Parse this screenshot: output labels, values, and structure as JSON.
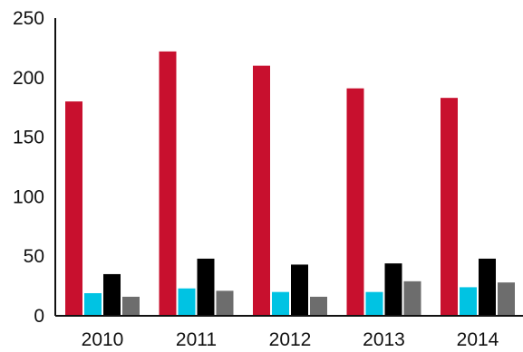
{
  "chart_data": {
    "type": "bar",
    "categories": [
      "2010",
      "2011",
      "2012",
      "2013",
      "2014"
    ],
    "series": [
      {
        "values": [
          180,
          222,
          210,
          191,
          183
        ],
        "color": "#c8102e"
      },
      {
        "values": [
          19,
          23,
          20,
          20,
          24
        ],
        "color": "#00c3e3"
      },
      {
        "values": [
          35,
          48,
          43,
          44,
          48
        ],
        "color": "#000000"
      },
      {
        "values": [
          16,
          21,
          16,
          29,
          28
        ],
        "color": "#6d6d6d"
      }
    ],
    "yticks": [
      "0",
      "50",
      "100",
      "150",
      "200",
      "250"
    ],
    "ylim": [
      0,
      250
    ],
    "grid": false,
    "legend": "none"
  }
}
